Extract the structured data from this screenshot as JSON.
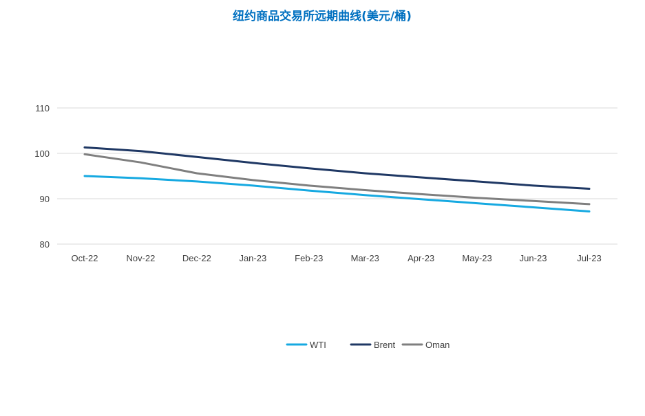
{
  "chart_data": {
    "type": "line",
    "title": "纽约商品交易所远期曲线(美元/桶)",
    "xlabel": "",
    "ylabel": "",
    "categories": [
      "Oct-22",
      "Nov-22",
      "Dec-22",
      "Jan-23",
      "Feb-23",
      "Mar-23",
      "Apr-23",
      "May-23",
      "Jun-23",
      "Jul-23"
    ],
    "ylim": [
      80,
      110
    ],
    "yticks": [
      80,
      90,
      100,
      110
    ],
    "grid": true,
    "legend_position": "bottom",
    "series": [
      {
        "name": "WTI",
        "color": "#16a9e1",
        "values": [
          95.0,
          94.5,
          93.8,
          92.9,
          91.8,
          90.8,
          89.9,
          89.0,
          88.1,
          87.2
        ]
      },
      {
        "name": "Brent",
        "color": "#1f3864",
        "values": [
          101.3,
          100.5,
          99.2,
          97.9,
          96.7,
          95.6,
          94.7,
          93.8,
          92.9,
          92.2
        ]
      },
      {
        "name": "Oman",
        "color": "#7f7f7f",
        "values": [
          99.8,
          98.0,
          95.6,
          94.1,
          92.9,
          91.9,
          91.0,
          90.2,
          89.5,
          88.8
        ]
      }
    ],
    "colors": {
      "title": "#0070c0",
      "grid": "#d9d9d9",
      "tick_text": "#404040"
    }
  }
}
